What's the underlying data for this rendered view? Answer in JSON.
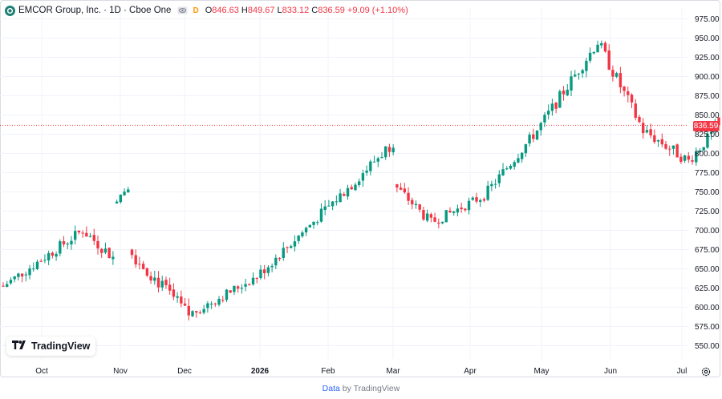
{
  "legend": {
    "title": "EMCOR Group, Inc. · 1D · Cboe One",
    "delayed": "D",
    "open_label": "O",
    "open": "846.63",
    "high_label": "H",
    "high": "849.67",
    "low_label": "L",
    "low": "833.12",
    "close_label": "C",
    "close": "836.59",
    "change": "+9.09 (+1.10%)"
  },
  "last_price_label": "836.59",
  "branding": {
    "name": "TradingView"
  },
  "footer": {
    "data_link": "Data",
    "by": "by TradingView"
  },
  "colors": {
    "up": "#089981",
    "down": "#f23645",
    "grid": "#f0f3fa",
    "axis_text": "#131722",
    "logo": "#1e7f74"
  },
  "icons": {
    "logo": "emcor-logo-icon",
    "eye": "eye-icon",
    "settings": "settings-gear-icon"
  },
  "chart_data": {
    "type": "candlestick",
    "y_ticks": [
      550,
      575,
      600,
      625,
      650,
      675,
      700,
      725,
      750,
      775,
      800,
      825,
      850,
      875,
      900,
      925,
      950,
      975
    ],
    "ylim": [
      535,
      985
    ],
    "x_labels": [
      "Oct",
      "Nov",
      "Dec",
      "2026",
      "Feb",
      "Mar",
      "Apr",
      "May",
      "Jun",
      "Jul"
    ],
    "last_price": 836.59,
    "segments": [
      {
        "start": 624,
        "end": 700,
        "bars": 22,
        "vol": 9
      },
      {
        "start": 700,
        "end": 665,
        "bars": 8,
        "vol": 10
      },
      {
        "gap_open": 735,
        "start": 735,
        "end": 758,
        "bars": 4,
        "vol": 6
      },
      {
        "gap_open": 675,
        "start": 675,
        "end": 590,
        "bars": 16,
        "vol": 11
      },
      {
        "start": 590,
        "end": 640,
        "bars": 18,
        "vol": 8
      },
      {
        "start": 640,
        "end": 755,
        "bars": 24,
        "vol": 9
      },
      {
        "start": 755,
        "end": 815,
        "bars": 12,
        "vol": 10
      },
      {
        "gap_open": 760,
        "start": 760,
        "end": 710,
        "bars": 10,
        "vol": 9
      },
      {
        "start": 710,
        "end": 745,
        "bars": 14,
        "vol": 8
      },
      {
        "start": 745,
        "end": 830,
        "bars": 14,
        "vol": 9
      },
      {
        "start": 830,
        "end": 945,
        "bars": 16,
        "vol": 10
      },
      {
        "start": 945,
        "end": 830,
        "bars": 12,
        "vol": 11
      },
      {
        "start": 830,
        "end": 790,
        "bars": 12,
        "vol": 10
      },
      {
        "start": 790,
        "end": 836.59,
        "bars": 8,
        "vol": 9
      }
    ]
  }
}
